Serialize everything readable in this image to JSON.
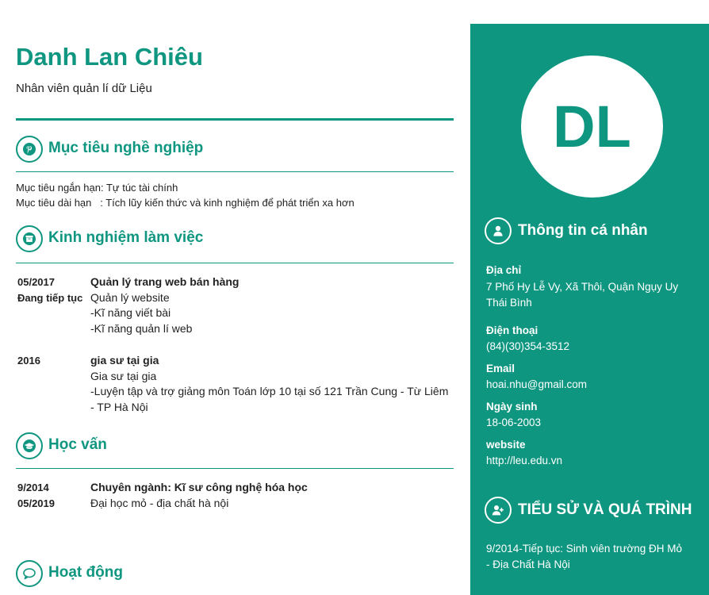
{
  "profile": {
    "name": "Danh Lan Chiêu",
    "job_title": "Nhân viên quản lí dữ Liệu",
    "initials": "DL"
  },
  "sections": {
    "objective": {
      "title": "Mục tiêu nghề nghiệp",
      "icon": "pinterest-icon",
      "lines": [
        {
          "label": "Mục tiêu ngắn hạn:",
          "value": " Tự túc tài chính"
        },
        {
          "label": "Mục tiêu dài hạn   :",
          "value": " Tích lũy kiến thức và kinh nghiệm để phát triển xa hơn"
        }
      ]
    },
    "experience": {
      "title": "Kinh nghiệm làm việc",
      "icon": "archive-icon",
      "items": [
        {
          "date_start": "05/2017",
          "date_end": "Đang tiếp tục",
          "title": "Quản lý trang web bán hàng",
          "lines": [
            "Quản lý website",
            "-Kĩ năng viết bài",
            "-Kĩ năng quản lí web"
          ]
        },
        {
          "date_start": "2016",
          "date_end": "",
          "title": "gia sư tại gia",
          "lines": [
            "Gia sư tại gia",
            "-Luyện tập và trợ giảng môn Toán lớp 10 tại số 121 Trần Cung -  Từ Liêm",
            "- TP Hà Nội"
          ]
        }
      ]
    },
    "education": {
      "title": "Học vấn",
      "icon": "graduation-cap-icon",
      "items": [
        {
          "date_start": "9/2014",
          "date_end": "05/2019",
          "title": "Chuyên ngành: Kĩ sư công nghệ hóa học",
          "lines": [
            "Đại học mỏ - địa chất hà nội"
          ]
        }
      ]
    },
    "activities": {
      "title": "Hoạt động",
      "icon": "speech-bubble-icon"
    }
  },
  "sidebar": {
    "personal_info": {
      "title": "Thông tin cá nhân",
      "icon": "user-icon",
      "fields": [
        {
          "label": "Địa chỉ",
          "lines": [
            "7 Phố Hy Lễ Vy, Xã Thôi, Quận Ngụy Uy",
            "Thái Bình"
          ]
        },
        {
          "label": "Điện thoại",
          "lines": [
            "(84)(30)354-3512"
          ]
        },
        {
          "label": "Email",
          "lines": [
            "hoai.nhu@gmail.com"
          ]
        },
        {
          "label": "Ngày sinh",
          "lines": [
            "18-06-2003"
          ]
        },
        {
          "label": "website",
          "lines": [
            "http://leu.edu.vn"
          ]
        }
      ]
    },
    "biography": {
      "title": "TIỂU SỬ VÀ QUÁ TRÌNH",
      "icon": "user-plus-icon",
      "lines": [
        "9/2014-Tiếp tục:  Sinh viên trường ĐH Mỏ",
        "- Địa Chất Hà Nội"
      ]
    }
  },
  "colors": {
    "accent": "#0f9680",
    "text": "#222222",
    "background": "#ffffff"
  }
}
